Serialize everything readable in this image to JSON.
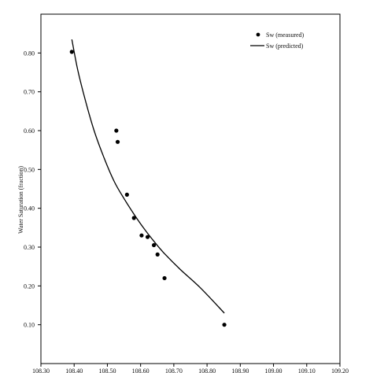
{
  "chart_data": {
    "type": "scatter",
    "title": "",
    "ylabel": "Water Saturation (fraction)",
    "xlabel": "",
    "xlim": [
      108.3,
      109.2
    ],
    "ylim": [
      0.0,
      0.9
    ],
    "x_ticks": [
      "108.30",
      "108.40",
      "108.50",
      "108.60",
      "108.70",
      "108.80",
      "108.90",
      "109.00",
      "109.10",
      "109.20"
    ],
    "y_ticks": [
      "0.10",
      "0.20",
      "0.30",
      "0.40",
      "0.50",
      "0.60",
      "0.70",
      "0.80"
    ],
    "series": [
      {
        "name": "Sw (measured)",
        "kind": "markers",
        "color": "#000000",
        "points": [
          [
            108.393,
            0.803
          ],
          [
            108.527,
            0.6
          ],
          [
            108.531,
            0.571
          ],
          [
            108.559,
            0.435
          ],
          [
            108.58,
            0.375
          ],
          [
            108.603,
            0.33
          ],
          [
            108.621,
            0.326
          ],
          [
            108.64,
            0.305
          ],
          [
            108.651,
            0.281
          ],
          [
            108.672,
            0.22
          ],
          [
            108.852,
            0.1
          ]
        ]
      },
      {
        "name": "Sw (predicted)",
        "kind": "line",
        "color": "#000000",
        "points": [
          [
            108.393,
            0.835
          ],
          [
            108.41,
            0.76
          ],
          [
            108.43,
            0.69
          ],
          [
            108.46,
            0.6
          ],
          [
            108.49,
            0.53
          ],
          [
            108.52,
            0.47
          ],
          [
            108.55,
            0.425
          ],
          [
            108.58,
            0.385
          ],
          [
            108.61,
            0.348
          ],
          [
            108.64,
            0.315
          ],
          [
            108.67,
            0.285
          ],
          [
            108.72,
            0.242
          ],
          [
            108.78,
            0.195
          ],
          [
            108.852,
            0.13
          ]
        ]
      }
    ],
    "legend": {
      "position": "top-right"
    },
    "grid": false
  }
}
